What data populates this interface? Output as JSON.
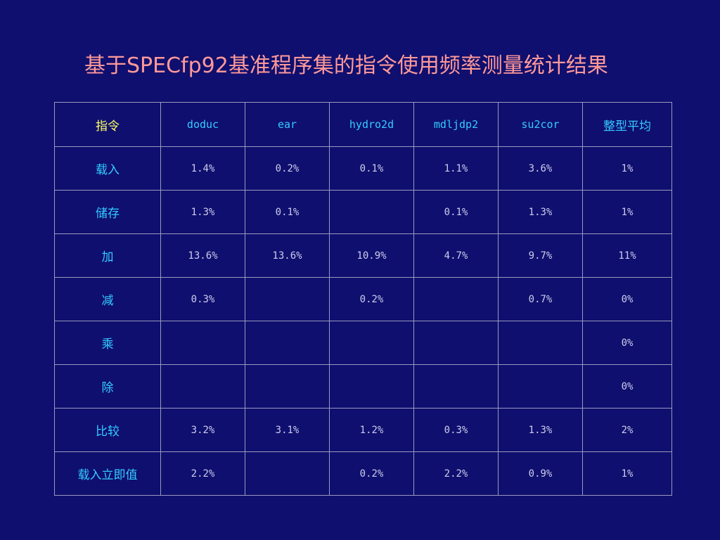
{
  "title": "基于SPECfp92基准程序集的指令使用频率测量统计结果",
  "table": {
    "header": {
      "instruction": "指令",
      "benchmarks": [
        "doduc",
        "ear",
        "hydro2d",
        "mdljdp2",
        "su2cor"
      ],
      "average": "整型平均"
    },
    "rows": [
      {
        "label": "载入",
        "values": [
          "1.4%",
          "0.2%",
          "0.1%",
          "1.1%",
          "3.6%"
        ],
        "average": "1%"
      },
      {
        "label": "储存",
        "values": [
          "1.3%",
          "0.1%",
          "",
          "0.1%",
          "1.3%"
        ],
        "average": "1%"
      },
      {
        "label": "加",
        "values": [
          "13.6%",
          "13.6%",
          "10.9%",
          "4.7%",
          "9.7%"
        ],
        "average": "11%"
      },
      {
        "label": "减",
        "values": [
          "0.3%",
          "",
          "0.2%",
          "",
          "0.7%"
        ],
        "average": "0%"
      },
      {
        "label": "乘",
        "values": [
          "",
          "",
          "",
          "",
          ""
        ],
        "average": "0%"
      },
      {
        "label": "除",
        "values": [
          "",
          "",
          "",
          "",
          ""
        ],
        "average": "0%"
      },
      {
        "label": "比较",
        "values": [
          "3.2%",
          "3.1%",
          "1.2%",
          "0.3%",
          "1.3%"
        ],
        "average": "2%"
      },
      {
        "label": "载入立即值",
        "values": [
          "2.2%",
          "",
          "0.2%",
          "2.2%",
          "0.9%"
        ],
        "average": "1%"
      }
    ]
  },
  "colors": {
    "background": "#0f0f6f",
    "title": "#ff9999",
    "header_instruction": "#ffff66",
    "header_accent": "#33ccff",
    "row_label": "#33ccff",
    "cell_value": "#ccccee",
    "grid_line": "#9a9ac0"
  }
}
